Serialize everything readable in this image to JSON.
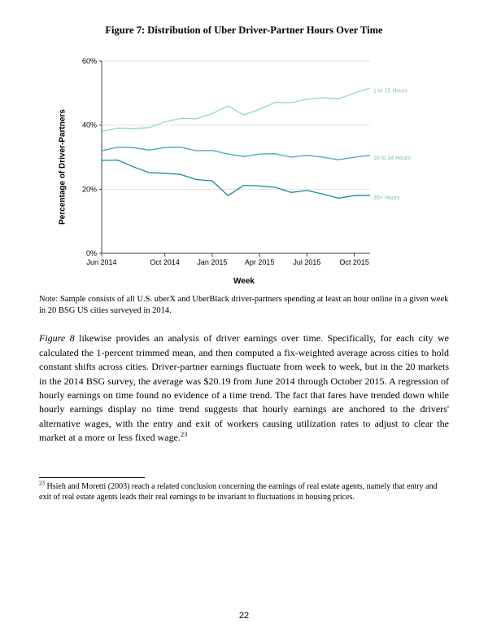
{
  "figure": {
    "title": "Figure 7: Distribution of Uber Driver-Partner Hours Over Time",
    "ylabel": "Percentage of Driver-Partners",
    "xlabel": "Week",
    "chart": {
      "type": "line",
      "background_color": "#ffffff",
      "grid_color": "#e0e0e0",
      "axis_color": "#444444",
      "tick_fontsize": 9,
      "label_fontsize": 10,
      "ylim": [
        0,
        60
      ],
      "ytick_step": 20,
      "ytick_labels": [
        "0%",
        "20%",
        "40%",
        "60%"
      ],
      "x_categories": [
        "Jun 2014",
        "Oct 2014",
        "Jan 2015",
        "Apr 2015",
        "Jul 2015",
        "Oct 2015"
      ],
      "x_cat_positions": [
        0,
        4,
        7,
        10,
        13,
        16
      ],
      "n_points": 18,
      "series": [
        {
          "name": "1 to 15 Hours",
          "label": "1 to 15 Hours",
          "color": "#8fd3d8",
          "width": 1.3,
          "values": [
            38,
            38.5,
            39,
            40,
            41,
            41.5,
            42,
            43,
            46,
            44,
            45,
            46.5,
            47,
            47.5,
            48.5,
            49,
            50,
            51
          ]
        },
        {
          "name": "16 to 34 Hours",
          "label": "16 to 34 Hours",
          "color": "#3ea9b5",
          "width": 1.3,
          "values": [
            32,
            32.5,
            33,
            33,
            33,
            32.5,
            32,
            31.5,
            31,
            31,
            31,
            30.5,
            30,
            30,
            30,
            30,
            30,
            30
          ]
        },
        {
          "name": "35+ Hours",
          "label": "35+ Hours",
          "color": "#1c8a97",
          "width": 1.3,
          "values": [
            29,
            28.5,
            27,
            26,
            25,
            24,
            23,
            22,
            18,
            22,
            21,
            20,
            19,
            19,
            18.5,
            18,
            18,
            17.5
          ]
        }
      ],
      "series_label_fontsize": 7,
      "series_label_color": "#7dbec5"
    }
  },
  "note_text": "Note: Sample consists of all U.S. uberX and UberBlack driver-partners spending at least an hour online in a given week in 20 BSG US cities surveyed in 2014.",
  "paragraph_html": "<em>Figure 8</em> likewise provides an analysis of driver earnings over time.  Specifically, for each city we calculated the 1-percent trimmed mean, and then computed a fix-weighted average across cities to hold constant shifts across cities.   Driver-partner earnings fluctuate from week to week, but in the 20 markets in the 2014 BSG survey, the average was $20.19 from June 2014 through October 2015. A regression of hourly earnings on time found no evidence of a time trend. The fact that fares have trended down while hourly earnings display no time trend suggests that hourly earnings are anchored to the drivers' alternative wages, with the entry and exit of workers causing utilization rates to adjust to clear the market at a more or less fixed wage.<sup>23</sup>",
  "footnote_html": "<sup>23</sup> Hsieh and Moretti (2003) reach a related conclusion concerning the earnings of real estate agents, namely that entry and exit of real estate agents leads their real earnings to be invariant to fluctuations in housing prices.",
  "page_number": "22"
}
